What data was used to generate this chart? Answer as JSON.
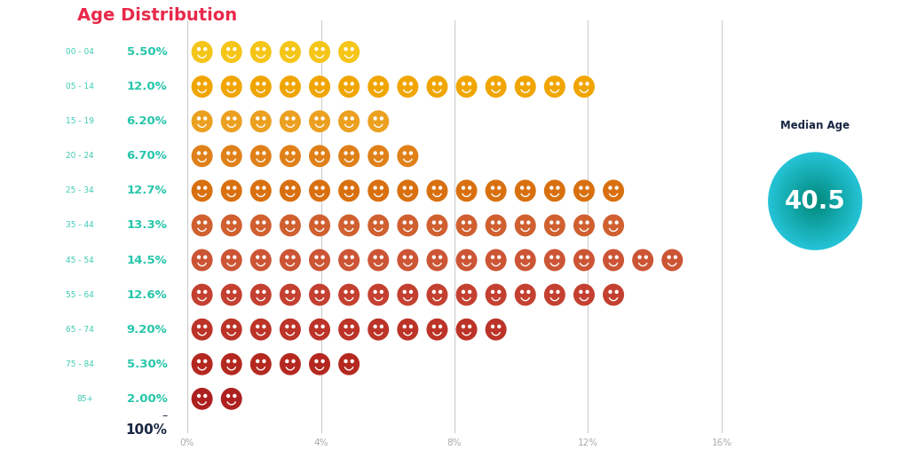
{
  "title": "Age Distribution",
  "title_color": "#e8294a",
  "title_fontsize": 14,
  "background_color": "#ffffff",
  "age_groups": [
    "00 - 04",
    "05 - 14",
    "15 - 19",
    "20 - 24",
    "25 - 34",
    "35 - 44",
    "45 - 54",
    "55 - 64",
    "65 - 74",
    "75 - 84",
    "85+"
  ],
  "percentages": [
    5.5,
    12.0,
    6.2,
    6.7,
    12.7,
    13.3,
    14.5,
    12.6,
    9.2,
    5.3,
    2.0
  ],
  "pct_labels": [
    "5.50%",
    "12.0%",
    "6.20%",
    "6.70%",
    "12.7%",
    "13.3%",
    "14.5%",
    "12.6%",
    "9.20%",
    "5.30%",
    "2.00%"
  ],
  "n_icons": [
    6,
    14,
    7,
    8,
    15,
    15,
    17,
    15,
    11,
    6,
    2
  ],
  "face_colors": [
    "#F5C518",
    "#F0A500",
    "#EBA020",
    "#E08018",
    "#D97010",
    "#D06030",
    "#CC5535",
    "#C44030",
    "#BC3328",
    "#B42820",
    "#AE2020"
  ],
  "age_label_color": "#26C6AA",
  "pct_label_color": "#26C6AA",
  "total_label": "100%",
  "total_color": "#1a2744",
  "median_age": "40.5",
  "median_label": "Median Age",
  "median_circle_top": "#26C6DA",
  "median_circle_bottom": "#00897B",
  "median_text_color": "#ffffff",
  "axis_ticks": [
    0,
    4,
    8,
    12,
    16
  ],
  "axis_tick_labels": [
    "0%",
    "4%",
    "8%",
    "12%",
    "16%"
  ]
}
